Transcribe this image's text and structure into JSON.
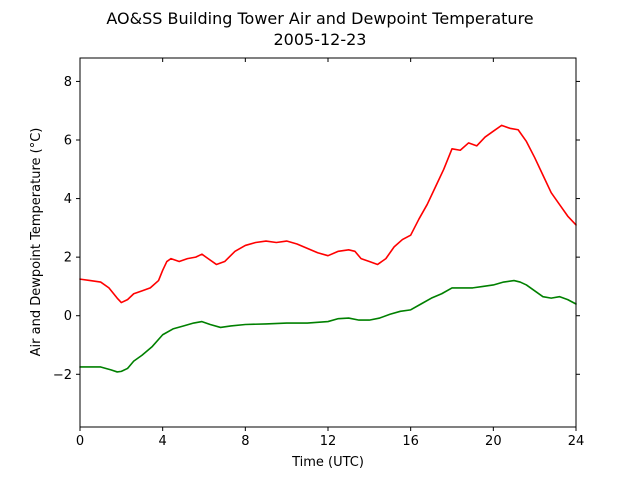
{
  "chart_data": {
    "type": "line",
    "title": "AO&SS Building Tower Air and Dewpoint Temperature",
    "subtitle": "2005-12-23",
    "xlabel": "Time (UTC)",
    "ylabel": "Air and Dewpoint Temperature (°C)",
    "xlim": [
      0,
      24
    ],
    "ylim": [
      -3.8,
      8.8
    ],
    "xticks": [
      0,
      4,
      8,
      12,
      16,
      20,
      24
    ],
    "yticks": [
      -2,
      0,
      2,
      4,
      6,
      8
    ],
    "grid": false,
    "series": [
      {
        "color": "#ff0000",
        "x": [
          0,
          0.5,
          1.0,
          1.4,
          1.8,
          2.0,
          2.3,
          2.6,
          3.0,
          3.4,
          3.8,
          4.0,
          4.2,
          4.4,
          4.8,
          5.2,
          5.6,
          5.9,
          6.2,
          6.6,
          7.0,
          7.5,
          8.0,
          8.5,
          9.0,
          9.5,
          10.0,
          10.5,
          11.0,
          11.5,
          12.0,
          12.5,
          13.0,
          13.3,
          13.6,
          14.0,
          14.4,
          14.8,
          15.2,
          15.6,
          16.0,
          16.4,
          16.8,
          17.2,
          17.6,
          18.0,
          18.4,
          18.8,
          19.2,
          19.6,
          20.0,
          20.4,
          20.8,
          21.2,
          21.6,
          22.0,
          22.4,
          22.8,
          23.2,
          23.6,
          24.0
        ],
        "values": [
          1.25,
          1.2,
          1.15,
          0.95,
          0.6,
          0.45,
          0.55,
          0.75,
          0.85,
          0.95,
          1.2,
          1.55,
          1.85,
          1.95,
          1.85,
          1.95,
          2.0,
          2.1,
          1.95,
          1.75,
          1.85,
          2.2,
          2.4,
          2.5,
          2.55,
          2.5,
          2.55,
          2.45,
          2.3,
          2.15,
          2.05,
          2.2,
          2.25,
          2.2,
          1.95,
          1.85,
          1.75,
          1.95,
          2.35,
          2.6,
          2.75,
          3.3,
          3.8,
          4.4,
          5.0,
          5.7,
          5.65,
          5.9,
          5.8,
          6.1,
          6.3,
          6.5,
          6.4,
          6.35,
          5.95,
          5.4,
          4.8,
          4.2,
          3.8,
          3.4,
          3.1
        ]
      },
      {
        "color": "#008000",
        "x": [
          0,
          0.5,
          1.0,
          1.5,
          1.8,
          2.0,
          2.3,
          2.6,
          3.0,
          3.5,
          4.0,
          4.5,
          5.0,
          5.5,
          5.9,
          6.3,
          6.8,
          7.3,
          8.0,
          9.0,
          10.0,
          11.0,
          12.0,
          12.5,
          13.0,
          13.5,
          14.0,
          14.5,
          15.0,
          15.5,
          16.0,
          16.5,
          17.0,
          17.5,
          18.0,
          18.5,
          19.0,
          19.5,
          20.0,
          20.5,
          21.0,
          21.3,
          21.6,
          22.0,
          22.4,
          22.8,
          23.2,
          23.6,
          24.0
        ],
        "values": [
          -1.75,
          -1.75,
          -1.75,
          -1.85,
          -1.92,
          -1.9,
          -1.8,
          -1.55,
          -1.35,
          -1.05,
          -0.65,
          -0.45,
          -0.35,
          -0.25,
          -0.2,
          -0.3,
          -0.4,
          -0.35,
          -0.3,
          -0.28,
          -0.25,
          -0.25,
          -0.2,
          -0.1,
          -0.08,
          -0.15,
          -0.15,
          -0.08,
          0.05,
          0.15,
          0.2,
          0.4,
          0.6,
          0.75,
          0.95,
          0.95,
          0.95,
          1.0,
          1.05,
          1.15,
          1.2,
          1.15,
          1.05,
          0.85,
          0.65,
          0.6,
          0.65,
          0.55,
          0.4
        ]
      }
    ]
  }
}
